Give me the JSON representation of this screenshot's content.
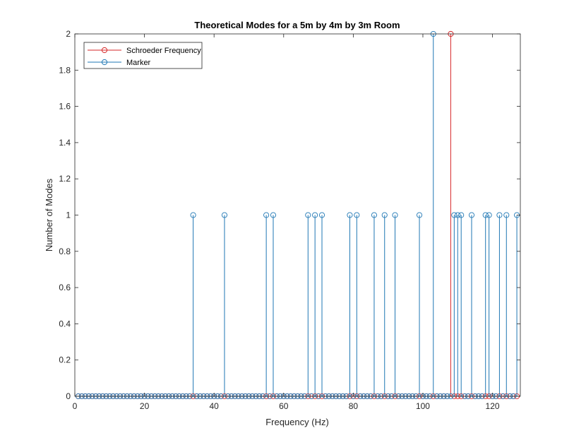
{
  "chart_data": {
    "type": "stem",
    "title": "Theoretical Modes for a 5m by 4m by 3m Room",
    "xlabel": "Frequency (Hz)",
    "ylabel": "Number of Modes",
    "xlim": [
      0,
      128
    ],
    "ylim": [
      0,
      2
    ],
    "xticks": [
      0,
      20,
      40,
      60,
      80,
      100,
      120
    ],
    "yticks": [
      0,
      0.2,
      0.4,
      0.6,
      0.8,
      1,
      1.2,
      1.4,
      1.6,
      1.8,
      2
    ],
    "xtick_labels": [
      "0",
      "20",
      "40",
      "60",
      "80",
      "100",
      "120"
    ],
    "ytick_labels": [
      "0",
      "0.2",
      "0.4",
      "0.6",
      "0.8",
      "1",
      "1.2",
      "1.4",
      "1.6",
      "1.8",
      "2"
    ],
    "grid": false,
    "legend_position": "top-left",
    "legend": [
      "Schroeder Frequency",
      "Marker"
    ],
    "series": [
      {
        "name": "Schroeder Frequency",
        "color": "#d62728",
        "x": [
          108
        ],
        "y": [
          2
        ]
      },
      {
        "name": "Marker",
        "color": "#1f77b4",
        "x_start": 1,
        "x_end": 127,
        "x_step": 1,
        "nonzero": [
          {
            "x": 34,
            "y": 1
          },
          {
            "x": 43,
            "y": 1
          },
          {
            "x": 55,
            "y": 1
          },
          {
            "x": 57,
            "y": 1
          },
          {
            "x": 67,
            "y": 1
          },
          {
            "x": 69,
            "y": 1
          },
          {
            "x": 71,
            "y": 1
          },
          {
            "x": 79,
            "y": 1
          },
          {
            "x": 81,
            "y": 1
          },
          {
            "x": 86,
            "y": 1
          },
          {
            "x": 89,
            "y": 1
          },
          {
            "x": 92,
            "y": 1
          },
          {
            "x": 99,
            "y": 1
          },
          {
            "x": 103,
            "y": 2
          },
          {
            "x": 109,
            "y": 1
          },
          {
            "x": 110,
            "y": 1
          },
          {
            "x": 111,
            "y": 1
          },
          {
            "x": 114,
            "y": 1
          },
          {
            "x": 118,
            "y": 1
          },
          {
            "x": 119,
            "y": 1
          },
          {
            "x": 122,
            "y": 1
          },
          {
            "x": 124,
            "y": 1
          },
          {
            "x": 127,
            "y": 1
          }
        ]
      }
    ]
  }
}
